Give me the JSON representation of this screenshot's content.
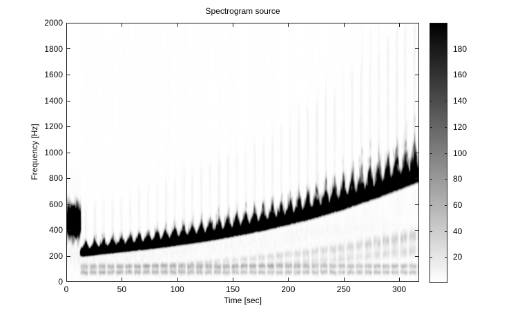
{
  "figure": {
    "background": "#ffffff",
    "axis_color": "#1a1a1a",
    "text_color": "#000000"
  },
  "chart_data": {
    "type": "heatmap",
    "subtype": "spectrogram",
    "title": "Spectrogram source",
    "xlabel": "Time [sec]",
    "ylabel": "Frequency [Hz]",
    "xlim": [
      0,
      318
    ],
    "ylim": [
      0,
      2000
    ],
    "xticks": [
      0,
      50,
      100,
      150,
      200,
      250,
      300
    ],
    "yticks": [
      0,
      200,
      400,
      600,
      800,
      1000,
      1200,
      1400,
      1600,
      1800,
      2000
    ],
    "grid": false,
    "legend": "none",
    "colorbar": {
      "position": "right",
      "min": 0,
      "max": 200,
      "ticks": [
        20,
        40,
        60,
        80,
        100,
        120,
        140,
        160,
        180
      ],
      "low_color": "#ffffff",
      "high_color": "#000000",
      "colormap": "gray-inverted"
    },
    "main_ridge": {
      "t": [
        15,
        30,
        50,
        75,
        100,
        125,
        150,
        175,
        200,
        225,
        250,
        275,
        300,
        318
      ],
      "f": [
        235,
        252,
        272,
        298,
        328,
        362,
        402,
        448,
        502,
        562,
        632,
        712,
        800,
        868
      ]
    },
    "pulse_period_sec": 8,
    "pulse_rise_fraction": 0.62,
    "pulse_peak_ratio": 1.32,
    "fine_spike_period_sec": 1.9,
    "fine_spike_ratio": 1.22,
    "ridge_peak_value": 150,
    "initial_burst": {
      "t_range": [
        0,
        13
      ],
      "f_center": 470,
      "f_spread": 110,
      "peak_value": 150
    },
    "subharmonic_ratios": [
      0.42,
      0.29
    ],
    "subharmonic_value": 14,
    "low_noise_bands_hz": [
      [
        58,
        92
      ],
      [
        103,
        142
      ]
    ],
    "low_band_value": 16,
    "streak_value": 4,
    "noise_floor_value": 6,
    "seed": 7
  }
}
